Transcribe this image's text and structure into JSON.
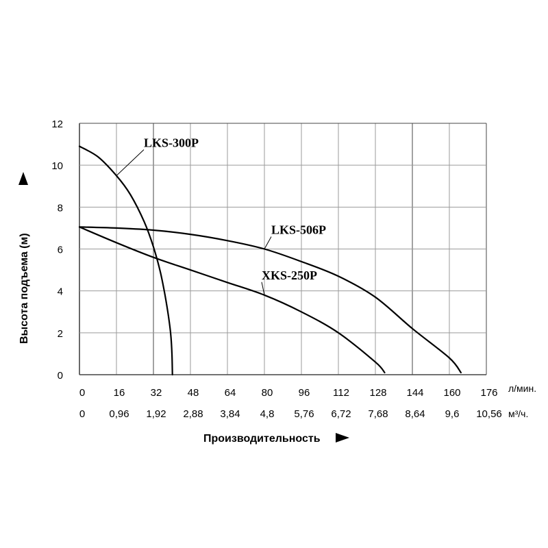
{
  "chart_data": {
    "type": "line",
    "title": "",
    "xlabel": "Производительность",
    "ylabel": "Высота подъема (м)",
    "x_unit": "л/мин.",
    "x2_unit": "м³/ч.",
    "xlim": [
      0,
      176
    ],
    "ylim": [
      0,
      12
    ],
    "grid": true,
    "x_ticks": [
      "0",
      "16",
      "32",
      "48",
      "64",
      "80",
      "96",
      "112",
      "128",
      "144",
      "160",
      "176"
    ],
    "x2_ticks": [
      "0",
      "0,96",
      "1,92",
      "2,88",
      "3,84",
      "4,8",
      "5,76",
      "6,72",
      "7,68",
      "8,64",
      "9,6",
      "10,56"
    ],
    "y_ticks": [
      "0",
      "2",
      "4",
      "6",
      "8",
      "10",
      "12"
    ],
    "series": [
      {
        "name": "LKS-300P",
        "x": [
          0,
          8,
          16,
          22,
          28,
          32,
          35,
          37,
          38.5,
          39.5,
          40,
          40.2
        ],
        "y": [
          10.9,
          10.4,
          9.5,
          8.6,
          7.3,
          6.1,
          4.9,
          3.8,
          2.8,
          1.9,
          1.0,
          0
        ]
      },
      {
        "name": "LKS-506P",
        "x": [
          0,
          16,
          32,
          48,
          64,
          80,
          96,
          112,
          128,
          144,
          160,
          165
        ],
        "y": [
          7.05,
          7.0,
          6.9,
          6.7,
          6.4,
          6.0,
          5.4,
          4.7,
          3.7,
          2.2,
          0.8,
          0.1
        ]
      },
      {
        "name": "XKS-250P",
        "x": [
          0,
          16,
          32,
          48,
          64,
          80,
          96,
          112,
          128,
          132
        ],
        "y": [
          7.05,
          6.3,
          5.6,
          5.0,
          4.4,
          3.8,
          3.0,
          2.0,
          0.6,
          0.1
        ]
      }
    ]
  }
}
